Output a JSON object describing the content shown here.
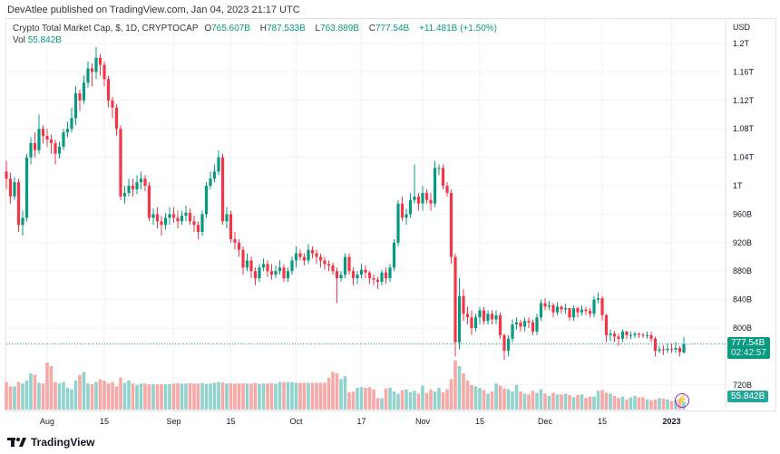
{
  "header": {
    "published": "DevAtlee published on TradingView.com, Jan 04, 2023 21:17 UTC"
  },
  "legend": {
    "symbol": "Crypto Total Market Cap, $, 1D, CRYPTOCAP",
    "o_label": "O",
    "o": "765.607B",
    "h_label": "H",
    "h": "787.533B",
    "l_label": "L",
    "l": "763.889B",
    "c_label": "C",
    "c": "777.54B",
    "change": "+11.481B (+1.50%)",
    "vol_label": "Vol",
    "vol": "55.842B"
  },
  "badges": {
    "price": "777.54B",
    "countdown": "02:42:57",
    "volume": "55.842B"
  },
  "footer": {
    "brand": "TradingView"
  },
  "colors": {
    "up": "#089981",
    "down": "#F23645",
    "vol_up": "#92D2CC",
    "vol_down": "#F7A9A7",
    "accent": "#9C27B0"
  },
  "icons": {
    "alert": "lightning-icon",
    "logo": "tradingview-logo-icon"
  },
  "chart_data": {
    "type": "candlestick",
    "title": "Crypto Total Market Cap, $, 1D, CRYPTOCAP",
    "start_date": "2022-07-22",
    "end_date": "2023-01-04",
    "interval": "1D",
    "unit": "B USD",
    "y_axis": {
      "label": "USD",
      "ticks": [
        "1.2T",
        "1.16T",
        "1.12T",
        "1.08T",
        "1.04T",
        "1T",
        "960B",
        "920B",
        "880B",
        "840B",
        "800B",
        "720B"
      ],
      "tick_values": [
        1200,
        1160,
        1120,
        1080,
        1040,
        1000,
        960,
        920,
        880,
        840,
        800,
        720
      ]
    },
    "x_axis": {
      "ticks": [
        "Aug",
        "15",
        "Sep",
        "15",
        "Oct",
        "17",
        "Nov",
        "15",
        "Dec",
        "15",
        "2023"
      ],
      "tick_dates": [
        "2022-08-01",
        "2022-08-15",
        "2022-09-01",
        "2022-09-15",
        "2022-10-01",
        "2022-10-17",
        "2022-11-01",
        "2022-11-15",
        "2022-12-01",
        "2022-12-15",
        "2023-01-01"
      ]
    },
    "grid": true,
    "open": [
      1020,
      1010,
      985,
      1005,
      945,
      955,
      1040,
      1060,
      1050,
      1080,
      1070,
      1065,
      1060,
      1045,
      1055,
      1075,
      1080,
      1095,
      1130,
      1120,
      1145,
      1165,
      1160,
      1180,
      1170,
      1150,
      1120,
      1110,
      1080,
      985,
      990,
      1000,
      995,
      1005,
      1010,
      1000,
      955,
      960,
      950,
      945,
      955,
      960,
      955,
      950,
      958,
      962,
      950,
      945,
      935,
      960,
      1000,
      1010,
      1020,
      1040,
      950,
      960,
      925,
      920,
      910,
      885,
      895,
      880,
      870,
      885,
      890,
      880,
      875,
      880,
      885,
      870,
      880,
      895,
      905,
      900,
      895,
      910,
      905,
      900,
      895,
      890,
      888,
      880,
      870,
      875,
      900,
      880,
      870,
      875,
      882,
      878,
      870,
      868,
      865,
      878,
      870,
      885,
      920,
      975,
      955,
      960,
      980,
      985,
      975,
      990,
      980,
      975,
      1025,
      1025,
      1000,
      990,
      900,
      780,
      845,
      820,
      815,
      800,
      815,
      825,
      810,
      820,
      812,
      818,
      790,
      768,
      785,
      805,
      808,
      802,
      810,
      808,
      795,
      815,
      835,
      830,
      832,
      822,
      830,
      826,
      828,
      815,
      828,
      822,
      826,
      824,
      820,
      840,
      842,
      818,
      790,
      792,
      788,
      785,
      795,
      790,
      790,
      792,
      791,
      790,
      790,
      785,
      768,
      770,
      769,
      771,
      770,
      772,
      765.607
    ],
    "high": [
      1035,
      1018,
      1012,
      1010,
      965,
      1045,
      1068,
      1075,
      1100,
      1085,
      1080,
      1072,
      1065,
      1062,
      1080,
      1090,
      1110,
      1140,
      1135,
      1155,
      1175,
      1172,
      1195,
      1185,
      1175,
      1155,
      1125,
      1115,
      1085,
      1000,
      1010,
      1010,
      1015,
      1020,
      1015,
      1005,
      968,
      970,
      958,
      962,
      970,
      970,
      965,
      965,
      972,
      968,
      958,
      950,
      965,
      1005,
      1020,
      1030,
      1050,
      1045,
      970,
      965,
      935,
      925,
      915,
      905,
      900,
      885,
      890,
      898,
      895,
      890,
      888,
      895,
      890,
      885,
      900,
      915,
      910,
      905,
      918,
      915,
      910,
      905,
      900,
      895,
      892,
      885,
      880,
      905,
      905,
      885,
      880,
      890,
      888,
      880,
      875,
      872,
      882,
      885,
      890,
      925,
      980,
      985,
      968,
      990,
      1030,
      990,
      1000,
      995,
      990,
      1035,
      1030,
      1030,
      1005,
      995,
      905,
      870,
      855,
      830,
      825,
      820,
      830,
      830,
      825,
      825,
      825,
      822,
      792,
      790,
      812,
      815,
      812,
      815,
      815,
      812,
      820,
      840,
      842,
      838,
      835,
      836,
      832,
      834,
      828,
      832,
      830,
      832,
      830,
      828,
      845,
      850,
      845,
      820,
      798,
      796,
      792,
      798,
      796,
      795,
      795,
      794,
      793,
      795,
      795,
      788,
      775,
      776,
      778,
      778,
      780,
      775,
      787.533
    ],
    "low": [
      995,
      975,
      980,
      935,
      930,
      950,
      1030,
      1040,
      1045,
      1060,
      1055,
      1045,
      1030,
      1038,
      1050,
      1068,
      1075,
      1085,
      1105,
      1115,
      1138,
      1140,
      1150,
      1155,
      1140,
      1110,
      1095,
      1070,
      980,
      975,
      985,
      985,
      988,
      995,
      992,
      950,
      945,
      940,
      930,
      938,
      945,
      948,
      940,
      945,
      950,
      945,
      935,
      925,
      930,
      955,
      995,
      1005,
      1015,
      945,
      940,
      920,
      910,
      900,
      875,
      880,
      870,
      860,
      865,
      880,
      872,
      868,
      870,
      875,
      865,
      865,
      875,
      885,
      895,
      888,
      890,
      898,
      890,
      885,
      882,
      880,
      875,
      835,
      865,
      870,
      875,
      860,
      862,
      870,
      870,
      862,
      860,
      855,
      860,
      862,
      865,
      880,
      915,
      950,
      945,
      955,
      975,
      965,
      965,
      975,
      965,
      970,
      1015,
      995,
      985,
      890,
      760,
      770,
      810,
      805,
      790,
      795,
      805,
      805,
      805,
      805,
      805,
      785,
      755,
      760,
      780,
      798,
      795,
      795,
      800,
      790,
      790,
      810,
      825,
      825,
      815,
      818,
      820,
      820,
      810,
      810,
      815,
      818,
      818,
      815,
      815,
      835,
      810,
      780,
      782,
      780,
      775,
      780,
      784,
      784,
      786,
      786,
      786,
      785,
      780,
      760,
      765,
      762,
      765,
      765,
      765,
      760,
      763.889
    ],
    "close": [
      1010,
      985,
      1005,
      945,
      955,
      1040,
      1060,
      1050,
      1080,
      1070,
      1065,
      1060,
      1045,
      1055,
      1075,
      1080,
      1095,
      1130,
      1120,
      1145,
      1165,
      1160,
      1180,
      1170,
      1150,
      1120,
      1110,
      1080,
      985,
      990,
      1000,
      995,
      1005,
      1010,
      1000,
      955,
      960,
      950,
      945,
      955,
      960,
      955,
      950,
      958,
      962,
      950,
      945,
      935,
      960,
      1000,
      1010,
      1020,
      1040,
      950,
      960,
      925,
      920,
      910,
      885,
      895,
      880,
      870,
      885,
      890,
      880,
      875,
      880,
      885,
      870,
      880,
      895,
      905,
      900,
      895,
      910,
      905,
      900,
      895,
      890,
      888,
      880,
      870,
      875,
      900,
      880,
      870,
      875,
      882,
      878,
      870,
      868,
      865,
      878,
      870,
      885,
      920,
      975,
      955,
      960,
      980,
      985,
      975,
      990,
      980,
      975,
      1025,
      1025,
      1000,
      990,
      900,
      780,
      845,
      820,
      815,
      800,
      815,
      825,
      810,
      820,
      812,
      818,
      790,
      768,
      785,
      805,
      808,
      802,
      810,
      808,
      795,
      815,
      835,
      830,
      832,
      822,
      830,
      826,
      828,
      815,
      828,
      822,
      826,
      824,
      820,
      840,
      842,
      818,
      790,
      792,
      788,
      785,
      795,
      790,
      790,
      792,
      791,
      790,
      790,
      785,
      768,
      770,
      769,
      771,
      770,
      772,
      766.059,
      777.54
    ],
    "volume": [
      190,
      160,
      160,
      190,
      180,
      200,
      250,
      240,
      185,
      180,
      325,
      300,
      190,
      180,
      190,
      150,
      140,
      200,
      240,
      260,
      180,
      175,
      190,
      210,
      200,
      180,
      190,
      160,
      220,
      185,
      200,
      180,
      170,
      180,
      180,
      175,
      175,
      175,
      175,
      175,
      175,
      180,
      182,
      178,
      180,
      181,
      179,
      180,
      183,
      177,
      180,
      185,
      190,
      188,
      180,
      182,
      178,
      180,
      181,
      179,
      180,
      183,
      177,
      180,
      180,
      182,
      178,
      190,
      190,
      190,
      190,
      185,
      185,
      185,
      185,
      185,
      185,
      185,
      185,
      220,
      260,
      250,
      210,
      230,
      120,
      125,
      150,
      155,
      150,
      155,
      140,
      80,
      78,
      145,
      150,
      125,
      110,
      135,
      140,
      120,
      130,
      110,
      165,
      115,
      140,
      125,
      150,
      120,
      140,
      210,
      340,
      300,
      250,
      200,
      170,
      160,
      150,
      135,
      110,
      125,
      180,
      165,
      145,
      140,
      125,
      170,
      125,
      110,
      105,
      130,
      115,
      140,
      110,
      95,
      115,
      105,
      105,
      110,
      100,
      85,
      100,
      105,
      80,
      90,
      90,
      130,
      135,
      115,
      110,
      95,
      80,
      90,
      70,
      85,
      95,
      85,
      85,
      70,
      65,
      70,
      80,
      75,
      70,
      60,
      65,
      70,
      55.842
    ]
  }
}
